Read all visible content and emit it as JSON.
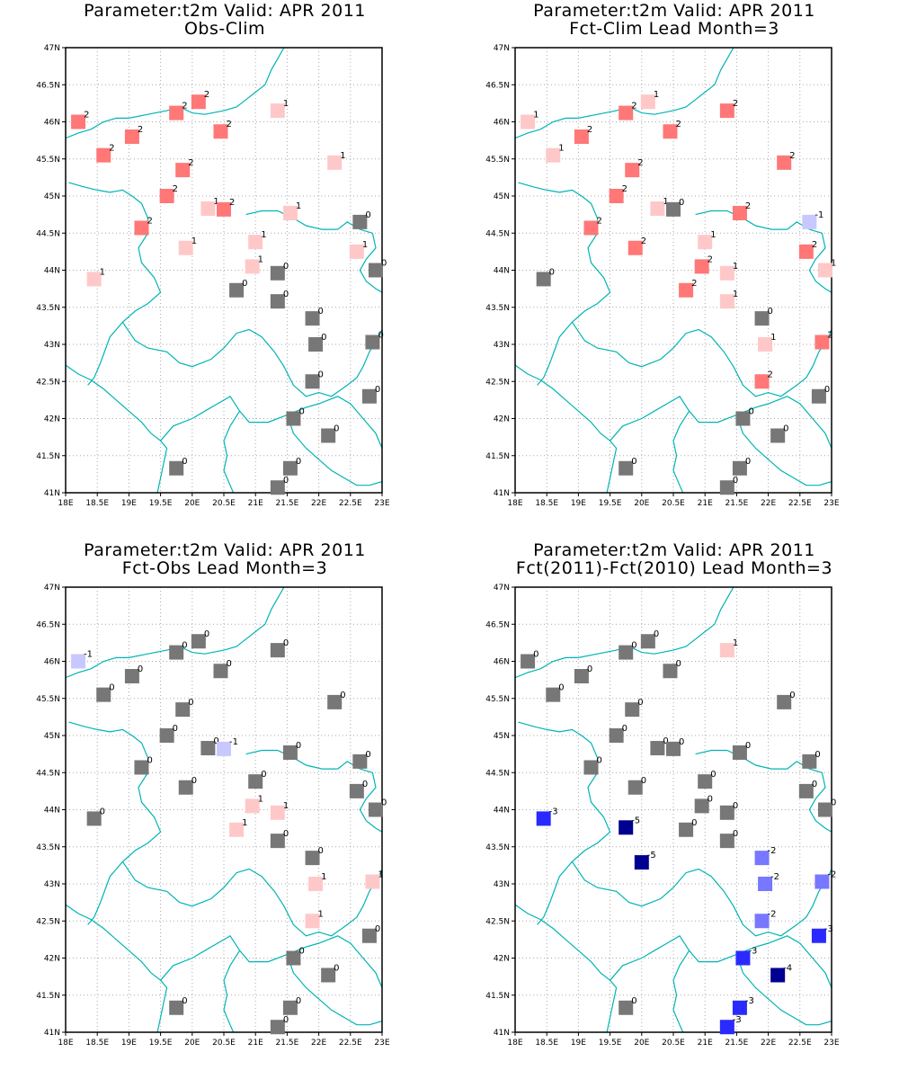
{
  "colors": {
    "zero": "#777777",
    "plus1": "#ffc8c8",
    "plus2": "#ff7777",
    "minus1": "#c8c8ff",
    "minus2": "#7777ff",
    "minus3": "#2a2aff",
    "minus4": "#000090",
    "minus5": "#000090",
    "border": "#00b4b4",
    "frame": "#000000",
    "grid": "#aaaaaa"
  },
  "axes": {
    "x_ticks": [
      18,
      18.5,
      19,
      19.5,
      20,
      20.5,
      21,
      21.5,
      22,
      22.5,
      23
    ],
    "x_labels": [
      "18E",
      "18.5E",
      "19E",
      "19.5E",
      "20E",
      "20.5E",
      "21E",
      "21.5E",
      "22E",
      "22.5E",
      "23E"
    ],
    "y_ticks": [
      41,
      41.5,
      42,
      42.5,
      43,
      43.5,
      44,
      44.5,
      45,
      45.5,
      46,
      46.5,
      47
    ],
    "y_labels": [
      "41N",
      "41.5N",
      "42N",
      "42.5N",
      "43N",
      "43.5N",
      "44N",
      "44.5N",
      "45N",
      "45.5N",
      "46N",
      "46.5N",
      "47N"
    ],
    "xlim": [
      18,
      23
    ],
    "ylim": [
      41,
      47
    ]
  },
  "stations": [
    [
      18.2,
      46.0
    ],
    [
      18.6,
      45.55
    ],
    [
      19.05,
      45.8
    ],
    [
      19.75,
      46.12
    ],
    [
      20.1,
      46.27
    ],
    [
      20.45,
      45.87
    ],
    [
      21.35,
      46.15
    ],
    [
      19.85,
      45.35
    ],
    [
      22.25,
      45.45
    ],
    [
      19.6,
      45.0
    ],
    [
      20.25,
      44.83
    ],
    [
      20.5,
      44.82
    ],
    [
      19.2,
      44.57
    ],
    [
      21.55,
      44.77
    ],
    [
      22.65,
      44.65
    ],
    [
      19.9,
      44.3
    ],
    [
      21.0,
      44.38
    ],
    [
      22.6,
      44.25
    ],
    [
      22.9,
      44.0
    ],
    [
      18.45,
      43.88
    ],
    [
      20.95,
      44.05
    ],
    [
      21.35,
      43.96
    ],
    [
      20.7,
      43.73
    ],
    [
      21.35,
      43.58
    ],
    [
      21.9,
      43.35
    ],
    [
      21.95,
      43.0
    ],
    [
      22.85,
      43.03
    ],
    [
      21.9,
      42.5
    ],
    [
      22.8,
      42.3
    ],
    [
      21.6,
      42.0
    ],
    [
      22.15,
      41.77
    ],
    [
      19.75,
      41.33
    ],
    [
      21.55,
      41.33
    ],
    [
      21.35,
      41.07
    ]
  ],
  "borders": [
    [
      [
        18.0,
        45.78
      ],
      [
        18.2,
        45.85
      ],
      [
        18.4,
        45.9
      ],
      [
        18.6,
        46.0
      ],
      [
        18.8,
        46.05
      ],
      [
        19.0,
        46.05
      ],
      [
        19.3,
        46.1
      ],
      [
        19.6,
        46.15
      ],
      [
        19.8,
        46.2
      ],
      [
        20.0,
        46.12
      ],
      [
        20.2,
        46.1
      ],
      [
        20.5,
        46.15
      ],
      [
        20.7,
        46.2
      ],
      [
        20.85,
        46.3
      ],
      [
        21.0,
        46.4
      ],
      [
        21.15,
        46.5
      ],
      [
        21.25,
        46.7
      ],
      [
        21.35,
        46.85
      ],
      [
        21.45,
        47.0
      ]
    ],
    [
      [
        18.05,
        45.18
      ],
      [
        18.3,
        45.12
      ],
      [
        18.5,
        45.08
      ],
      [
        18.7,
        45.05
      ],
      [
        18.9,
        45.08
      ],
      [
        19.05,
        45.0
      ],
      [
        19.2,
        44.9
      ],
      [
        19.3,
        44.7
      ],
      [
        19.3,
        44.5
      ],
      [
        19.15,
        44.3
      ],
      [
        19.2,
        44.1
      ],
      [
        19.4,
        43.9
      ],
      [
        19.5,
        43.7
      ],
      [
        19.3,
        43.55
      ],
      [
        19.1,
        43.45
      ],
      [
        18.9,
        43.3
      ],
      [
        18.7,
        43.1
      ],
      [
        18.55,
        42.75
      ],
      [
        18.45,
        42.55
      ],
      [
        18.35,
        42.45
      ]
    ],
    [
      [
        18.0,
        42.72
      ],
      [
        18.2,
        42.6
      ],
      [
        18.4,
        42.52
      ],
      [
        18.6,
        42.4
      ],
      [
        18.8,
        42.25
      ],
      [
        19.0,
        42.1
      ],
      [
        19.2,
        41.95
      ],
      [
        19.35,
        41.8
      ],
      [
        19.5,
        41.7
      ],
      [
        19.6,
        41.6
      ],
      [
        19.55,
        41.4
      ],
      [
        19.5,
        41.2
      ],
      [
        19.45,
        41.0
      ]
    ],
    [
      [
        18.9,
        43.3
      ],
      [
        19.1,
        43.05
      ],
      [
        19.3,
        42.95
      ],
      [
        19.6,
        42.9
      ],
      [
        19.8,
        42.75
      ],
      [
        20.0,
        42.7
      ],
      [
        20.3,
        42.8
      ],
      [
        20.5,
        42.95
      ],
      [
        20.7,
        43.15
      ],
      [
        20.9,
        43.2
      ],
      [
        21.1,
        43.1
      ],
      [
        21.3,
        42.9
      ],
      [
        21.45,
        42.7
      ],
      [
        21.6,
        42.45
      ],
      [
        21.8,
        42.3
      ],
      [
        22.0,
        42.35
      ],
      [
        22.2,
        42.3
      ],
      [
        22.45,
        42.45
      ],
      [
        22.6,
        42.55
      ],
      [
        22.7,
        42.7
      ],
      [
        22.8,
        42.9
      ],
      [
        22.95,
        43.1
      ],
      [
        23.0,
        43.2
      ]
    ],
    [
      [
        19.5,
        41.7
      ],
      [
        19.7,
        41.9
      ],
      [
        20.0,
        42.0
      ],
      [
        20.2,
        42.1
      ],
      [
        20.4,
        42.2
      ],
      [
        20.6,
        42.3
      ],
      [
        20.75,
        42.1
      ],
      [
        20.9,
        41.95
      ],
      [
        21.2,
        41.95
      ],
      [
        21.5,
        42.05
      ],
      [
        21.8,
        42.15
      ],
      [
        22.0,
        42.2
      ],
      [
        22.3,
        42.3
      ],
      [
        22.5,
        42.2
      ],
      [
        22.7,
        42.0
      ],
      [
        22.9,
        41.8
      ],
      [
        23.0,
        41.6
      ]
    ],
    [
      [
        20.75,
        42.1
      ],
      [
        20.6,
        41.9
      ],
      [
        20.5,
        41.7
      ],
      [
        20.55,
        41.5
      ],
      [
        20.5,
        41.3
      ],
      [
        20.6,
        41.1
      ],
      [
        20.65,
        41.0
      ]
    ],
    [
      [
        21.5,
        42.05
      ],
      [
        21.6,
        41.8
      ],
      [
        21.8,
        41.6
      ],
      [
        22.0,
        41.45
      ],
      [
        22.2,
        41.3
      ],
      [
        22.4,
        41.2
      ],
      [
        22.6,
        41.1
      ],
      [
        22.8,
        41.1
      ],
      [
        23.0,
        41.15
      ]
    ],
    [
      [
        22.3,
        44.55
      ],
      [
        22.45,
        44.65
      ],
      [
        22.65,
        44.55
      ],
      [
        22.85,
        44.5
      ],
      [
        22.9,
        44.3
      ],
      [
        22.75,
        44.15
      ],
      [
        22.65,
        44.0
      ],
      [
        22.75,
        43.85
      ],
      [
        22.9,
        43.75
      ],
      [
        23.0,
        43.7
      ]
    ],
    [
      [
        20.85,
        44.75
      ],
      [
        21.1,
        44.8
      ],
      [
        21.35,
        44.8
      ],
      [
        21.6,
        44.7
      ],
      [
        21.8,
        44.6
      ],
      [
        22.05,
        44.55
      ],
      [
        22.3,
        44.55
      ]
    ]
  ],
  "panels": [
    {
      "title1": "Parameter:t2m Valid: APR 2011",
      "title2": "Obs-Clim",
      "values": [
        2,
        2,
        2,
        2,
        2,
        2,
        1,
        2,
        1,
        2,
        1,
        2,
        2,
        1,
        0,
        1,
        1,
        1,
        0,
        1,
        1,
        0,
        0,
        0,
        0,
        0,
        0,
        0,
        0,
        0,
        0,
        0,
        0,
        0
      ],
      "labels": [
        "2",
        "2",
        "2",
        "2",
        "2",
        "2",
        "1",
        "2",
        "1",
        "2",
        "1",
        "2",
        "2",
        "1",
        "0",
        "1",
        "1",
        "1",
        "0",
        "1",
        "1",
        "0",
        "0",
        "0",
        "0",
        "0",
        "0",
        "0",
        "0",
        "0",
        "0",
        "0",
        "0",
        "0"
      ]
    },
    {
      "title1": "Parameter:t2m Valid: APR 2011",
      "title2": "Fct-Clim Lead Month=3",
      "values": [
        1,
        1,
        2,
        2,
        1,
        2,
        2,
        2,
        2,
        2,
        1,
        0,
        2,
        2,
        -1,
        2,
        1,
        2,
        1,
        0,
        2,
        1,
        2,
        1,
        0,
        1,
        2,
        2,
        0,
        0,
        0,
        0,
        0,
        0
      ],
      "labels": [
        "1",
        "1",
        "2",
        "2",
        "1",
        "2",
        "2",
        "2",
        "2",
        "2",
        "1",
        "0",
        "2",
        "2",
        "-1",
        "2",
        "1",
        "2",
        "1",
        "0",
        "2",
        "1",
        "2",
        "1",
        "0",
        "1",
        "2",
        "2",
        "0",
        "0",
        "0",
        "0",
        "0",
        "0"
      ]
    },
    {
      "title1": "Parameter:t2m Valid: APR 2011",
      "title2": "Fct-Obs Lead Month=3",
      "values": [
        -1,
        0,
        0,
        0,
        0,
        0,
        0,
        0,
        0,
        0,
        0,
        -1,
        0,
        0,
        0,
        0,
        0,
        0,
        0,
        0,
        1,
        1,
        1,
        0,
        0,
        1,
        1,
        1,
        0,
        0,
        0,
        0,
        0,
        0
      ],
      "labels": [
        "-1",
        "0",
        "0",
        "0",
        "0",
        "0",
        "0",
        "0",
        "0",
        "0",
        "0",
        "-1",
        "0",
        "0",
        "0",
        "0",
        "0",
        "0",
        "0",
        "0",
        "1",
        "1",
        "1",
        "0",
        "0",
        "1",
        "1",
        "1",
        "0",
        "0",
        "0",
        "0",
        "0",
        "0"
      ]
    },
    {
      "title1": "Parameter:t2m Valid: APR 2011",
      "title2": "Fct(2011)-Fct(2010) Lead Month=3",
      "values": [
        0,
        0,
        0,
        0,
        0,
        0,
        1,
        0,
        0,
        0,
        0,
        0,
        0,
        0,
        0,
        0,
        0,
        0,
        0,
        -3,
        0,
        0,
        0,
        0,
        -2,
        -2,
        -2,
        -2,
        -3,
        -3,
        -4,
        0,
        -3,
        -3
      ],
      "labels": [
        "0",
        "0",
        "0",
        "0",
        "0",
        "0",
        "1",
        "0",
        "0",
        "0",
        "0",
        "0",
        "0",
        "0",
        "0",
        "0",
        "0",
        "0",
        "0",
        "-3",
        "0",
        "0",
        "0",
        "0",
        "-2",
        "-2",
        "-2",
        "-2",
        "-3",
        "-3",
        "-4",
        "0",
        "-3",
        "-3"
      ],
      "extra": [
        {
          "x": 19.75,
          "y": 43.76,
          "value": -5,
          "label": "-5"
        },
        {
          "x": 20.0,
          "y": 43.29,
          "value": -5,
          "label": "-5"
        }
      ]
    }
  ]
}
